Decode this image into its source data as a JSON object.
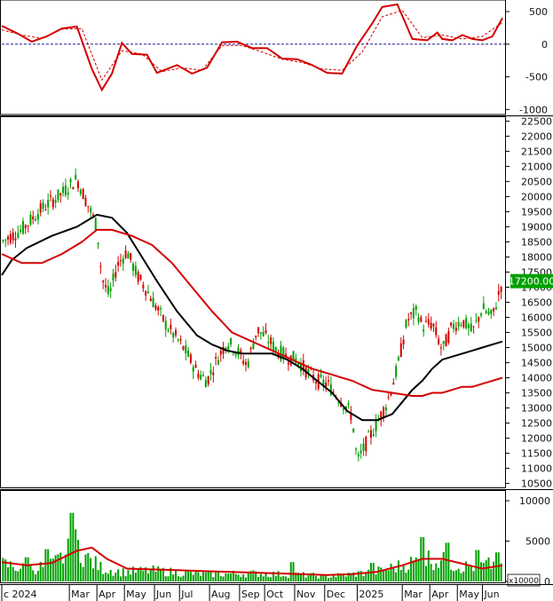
{
  "chart_data": [
    {
      "type": "line",
      "panel": "oscillator",
      "ylim": [
        -1050,
        650
      ],
      "y_ticks": [
        "500",
        "0",
        "-500",
        "-1000"
      ],
      "y_tick_values": [
        500,
        0,
        -500,
        -1000
      ],
      "zero_line": true,
      "series": [
        {
          "color": "#d40000",
          "style": "solid",
          "x": [
            0,
            0.03,
            0.06,
            0.09,
            0.12,
            0.15,
            0.18,
            0.2,
            0.22,
            0.24,
            0.26,
            0.29,
            0.31,
            0.33,
            0.35,
            0.38,
            0.41,
            0.44,
            0.47,
            0.5,
            0.53,
            0.56,
            0.59,
            0.62,
            0.65,
            0.68,
            0.71,
            0.74,
            0.76,
            0.79,
            0.82,
            0.85,
            0.87,
            0.88,
            0.9,
            0.92,
            0.94,
            0.96,
            0.98,
            1.0
          ],
          "values": [
            280,
            170,
            40,
            120,
            240,
            270,
            -380,
            -700,
            -450,
            20,
            -150,
            -160,
            -440,
            -380,
            -320,
            -450,
            -360,
            30,
            40,
            -60,
            -60,
            -220,
            -230,
            -320,
            -440,
            -450,
            -20,
            320,
            570,
            610,
            80,
            60,
            180,
            80,
            60,
            140,
            80,
            60,
            120,
            400
          ]
        },
        {
          "color": "#d40000",
          "style": "dashed",
          "x": [
            0,
            0.04,
            0.08,
            0.12,
            0.16,
            0.2,
            0.24,
            0.28,
            0.32,
            0.36,
            0.4,
            0.44,
            0.48,
            0.52,
            0.56,
            0.6,
            0.64,
            0.68,
            0.72,
            0.76,
            0.8,
            0.84,
            0.88,
            0.92,
            0.96,
            1.0
          ],
          "values": [
            220,
            140,
            90,
            230,
            240,
            -550,
            -100,
            -150,
            -420,
            -360,
            -400,
            -20,
            -20,
            -120,
            -230,
            -280,
            -380,
            -400,
            -120,
            420,
            520,
            100,
            140,
            80,
            120,
            330
          ]
        }
      ]
    },
    {
      "type": "candlestick",
      "panel": "price",
      "ylim": [
        10400,
        22600
      ],
      "y_ticks": [
        "22500",
        "22000",
        "21500",
        "21000",
        "20500",
        "20000",
        "19500",
        "19000",
        "18500",
        "18000",
        "17500",
        "17000",
        "16500",
        "16000",
        "15500",
        "15000",
        "14500",
        "14000",
        "13500",
        "13000",
        "12500",
        "12000",
        "11500",
        "11000",
        "10500"
      ],
      "y_tick_values": [
        22500,
        22000,
        21500,
        21000,
        20500,
        20000,
        19500,
        19000,
        18500,
        18000,
        17500,
        17000,
        16500,
        16000,
        15500,
        15000,
        14500,
        14000,
        13500,
        13000,
        12500,
        12000,
        11500,
        11000,
        10500
      ],
      "last_price_label": "17200.00",
      "last_price": 17200,
      "x_labels": [
        "c 2024",
        "Mar",
        "Apr",
        "May",
        "Jun",
        "Jul",
        "Aug",
        "Sep",
        "Oct",
        "Nov",
        "Dec",
        "2025",
        "Mar",
        "Apr",
        "May",
        "Jun"
      ],
      "x_label_positions": [
        0.0,
        0.135,
        0.19,
        0.245,
        0.305,
        0.355,
        0.415,
        0.475,
        0.525,
        0.585,
        0.645,
        0.71,
        0.8,
        0.855,
        0.91,
        0.96
      ],
      "price_path": {
        "x": [
          0,
          0.04,
          0.08,
          0.12,
          0.15,
          0.17,
          0.19,
          0.2,
          0.215,
          0.23,
          0.25,
          0.27,
          0.29,
          0.31,
          0.33,
          0.35,
          0.37,
          0.39,
          0.41,
          0.43,
          0.45,
          0.47,
          0.49,
          0.51,
          0.53,
          0.55,
          0.57,
          0.59,
          0.61,
          0.63,
          0.65,
          0.67,
          0.69,
          0.7,
          0.71,
          0.73,
          0.75,
          0.77,
          0.79,
          0.8,
          0.81,
          0.83,
          0.84,
          0.86,
          0.88,
          0.9,
          0.92,
          0.94,
          0.96,
          0.98,
          1.0
        ],
        "y": [
          18500,
          18900,
          19600,
          20100,
          20600,
          19800,
          19000,
          17300,
          16700,
          17700,
          18200,
          17400,
          16900,
          16300,
          15700,
          15300,
          14800,
          14200,
          13900,
          14600,
          15200,
          14900,
          14400,
          15600,
          15300,
          14900,
          14700,
          14600,
          14200,
          13900,
          13800,
          13400,
          13000,
          12700,
          11200,
          11900,
          12500,
          13200,
          14300,
          15100,
          15900,
          16200,
          15700,
          15800,
          14900,
          15700,
          15900,
          15500,
          16300,
          16000,
          17200
        ]
      },
      "series": [
        {
          "name": "",
          "color": "#000000",
          "x": [
            0,
            0.02,
            0.05,
            0.1,
            0.15,
            0.19,
            0.22,
            0.25,
            0.28,
            0.31,
            0.35,
            0.39,
            0.42,
            0.45,
            0.48,
            0.51,
            0.54,
            0.57,
            0.6,
            0.63,
            0.66,
            0.69,
            0.72,
            0.75,
            0.78,
            0.8,
            0.82,
            0.84,
            0.86,
            0.88,
            0.9,
            0.92,
            0.94,
            0.96,
            0.98,
            1.0
          ],
          "values": [
            17400,
            17900,
            18300,
            18700,
            19000,
            19400,
            19300,
            18800,
            18000,
            17200,
            16200,
            15400,
            15100,
            14900,
            14800,
            14800,
            14800,
            14600,
            14300,
            13900,
            13500,
            12900,
            12600,
            12600,
            12800,
            13200,
            13600,
            13900,
            14300,
            14600,
            14700,
            14800,
            14900,
            15000,
            15100,
            15200
          ]
        },
        {
          "name": "",
          "color": "#d40000",
          "x": [
            0,
            0.04,
            0.08,
            0.12,
            0.16,
            0.19,
            0.22,
            0.26,
            0.3,
            0.34,
            0.38,
            0.42,
            0.46,
            0.5,
            0.54,
            0.58,
            0.62,
            0.66,
            0.7,
            0.74,
            0.78,
            0.82,
            0.84,
            0.86,
            0.88,
            0.9,
            0.92,
            0.94,
            0.96,
            0.98,
            1.0
          ],
          "values": [
            18100,
            17800,
            17800,
            18100,
            18500,
            18900,
            18900,
            18700,
            18400,
            17800,
            17000,
            16200,
            15500,
            15200,
            14900,
            14600,
            14300,
            14100,
            13900,
            13600,
            13500,
            13400,
            13400,
            13500,
            13500,
            13600,
            13700,
            13700,
            13800,
            13900,
            14000
          ]
        }
      ]
    },
    {
      "type": "bar",
      "panel": "volume",
      "ylim": [
        0,
        11000
      ],
      "y_ticks": [
        "10000",
        "5000",
        "0"
      ],
      "y_tick_values": [
        10000,
        5000,
        0
      ],
      "unit_label": "x10000",
      "bars_profile": {
        "x": [
          0,
          0.05,
          0.1,
          0.13,
          0.15,
          0.17,
          0.2,
          0.24,
          0.3,
          0.4,
          0.5,
          0.6,
          0.65,
          0.7,
          0.75,
          0.8,
          0.85,
          0.88,
          0.92,
          0.96,
          1.0
        ],
        "values": [
          2400,
          1700,
          2200,
          3800,
          5200,
          3200,
          1800,
          1300,
          1500,
          1000,
          1100,
          900,
          700,
          1000,
          1400,
          2200,
          3200,
          2800,
          2000,
          2100,
          2600
        ]
      },
      "spikes": [
        [
          0.14,
          8500
        ],
        [
          0.09,
          4000
        ],
        [
          0.05,
          3000
        ],
        [
          0.58,
          2400
        ],
        [
          0.74,
          2300
        ],
        [
          0.84,
          5500
        ],
        [
          0.89,
          4800
        ],
        [
          0.95,
          3900
        ],
        [
          0.99,
          3600
        ]
      ],
      "series": [
        {
          "name": "",
          "color": "#d40000",
          "x": [
            0,
            0.05,
            0.1,
            0.15,
            0.18,
            0.21,
            0.25,
            0.3,
            0.35,
            0.4,
            0.45,
            0.5,
            0.55,
            0.6,
            0.65,
            0.7,
            0.75,
            0.8,
            0.84,
            0.88,
            0.92,
            0.96,
            1.0
          ],
          "values": [
            2400,
            2000,
            2300,
            3800,
            4200,
            2800,
            1600,
            1500,
            1400,
            1300,
            1200,
            1100,
            1000,
            900,
            800,
            900,
            1200,
            2000,
            2800,
            2800,
            2200,
            1600,
            2000
          ]
        }
      ]
    }
  ]
}
